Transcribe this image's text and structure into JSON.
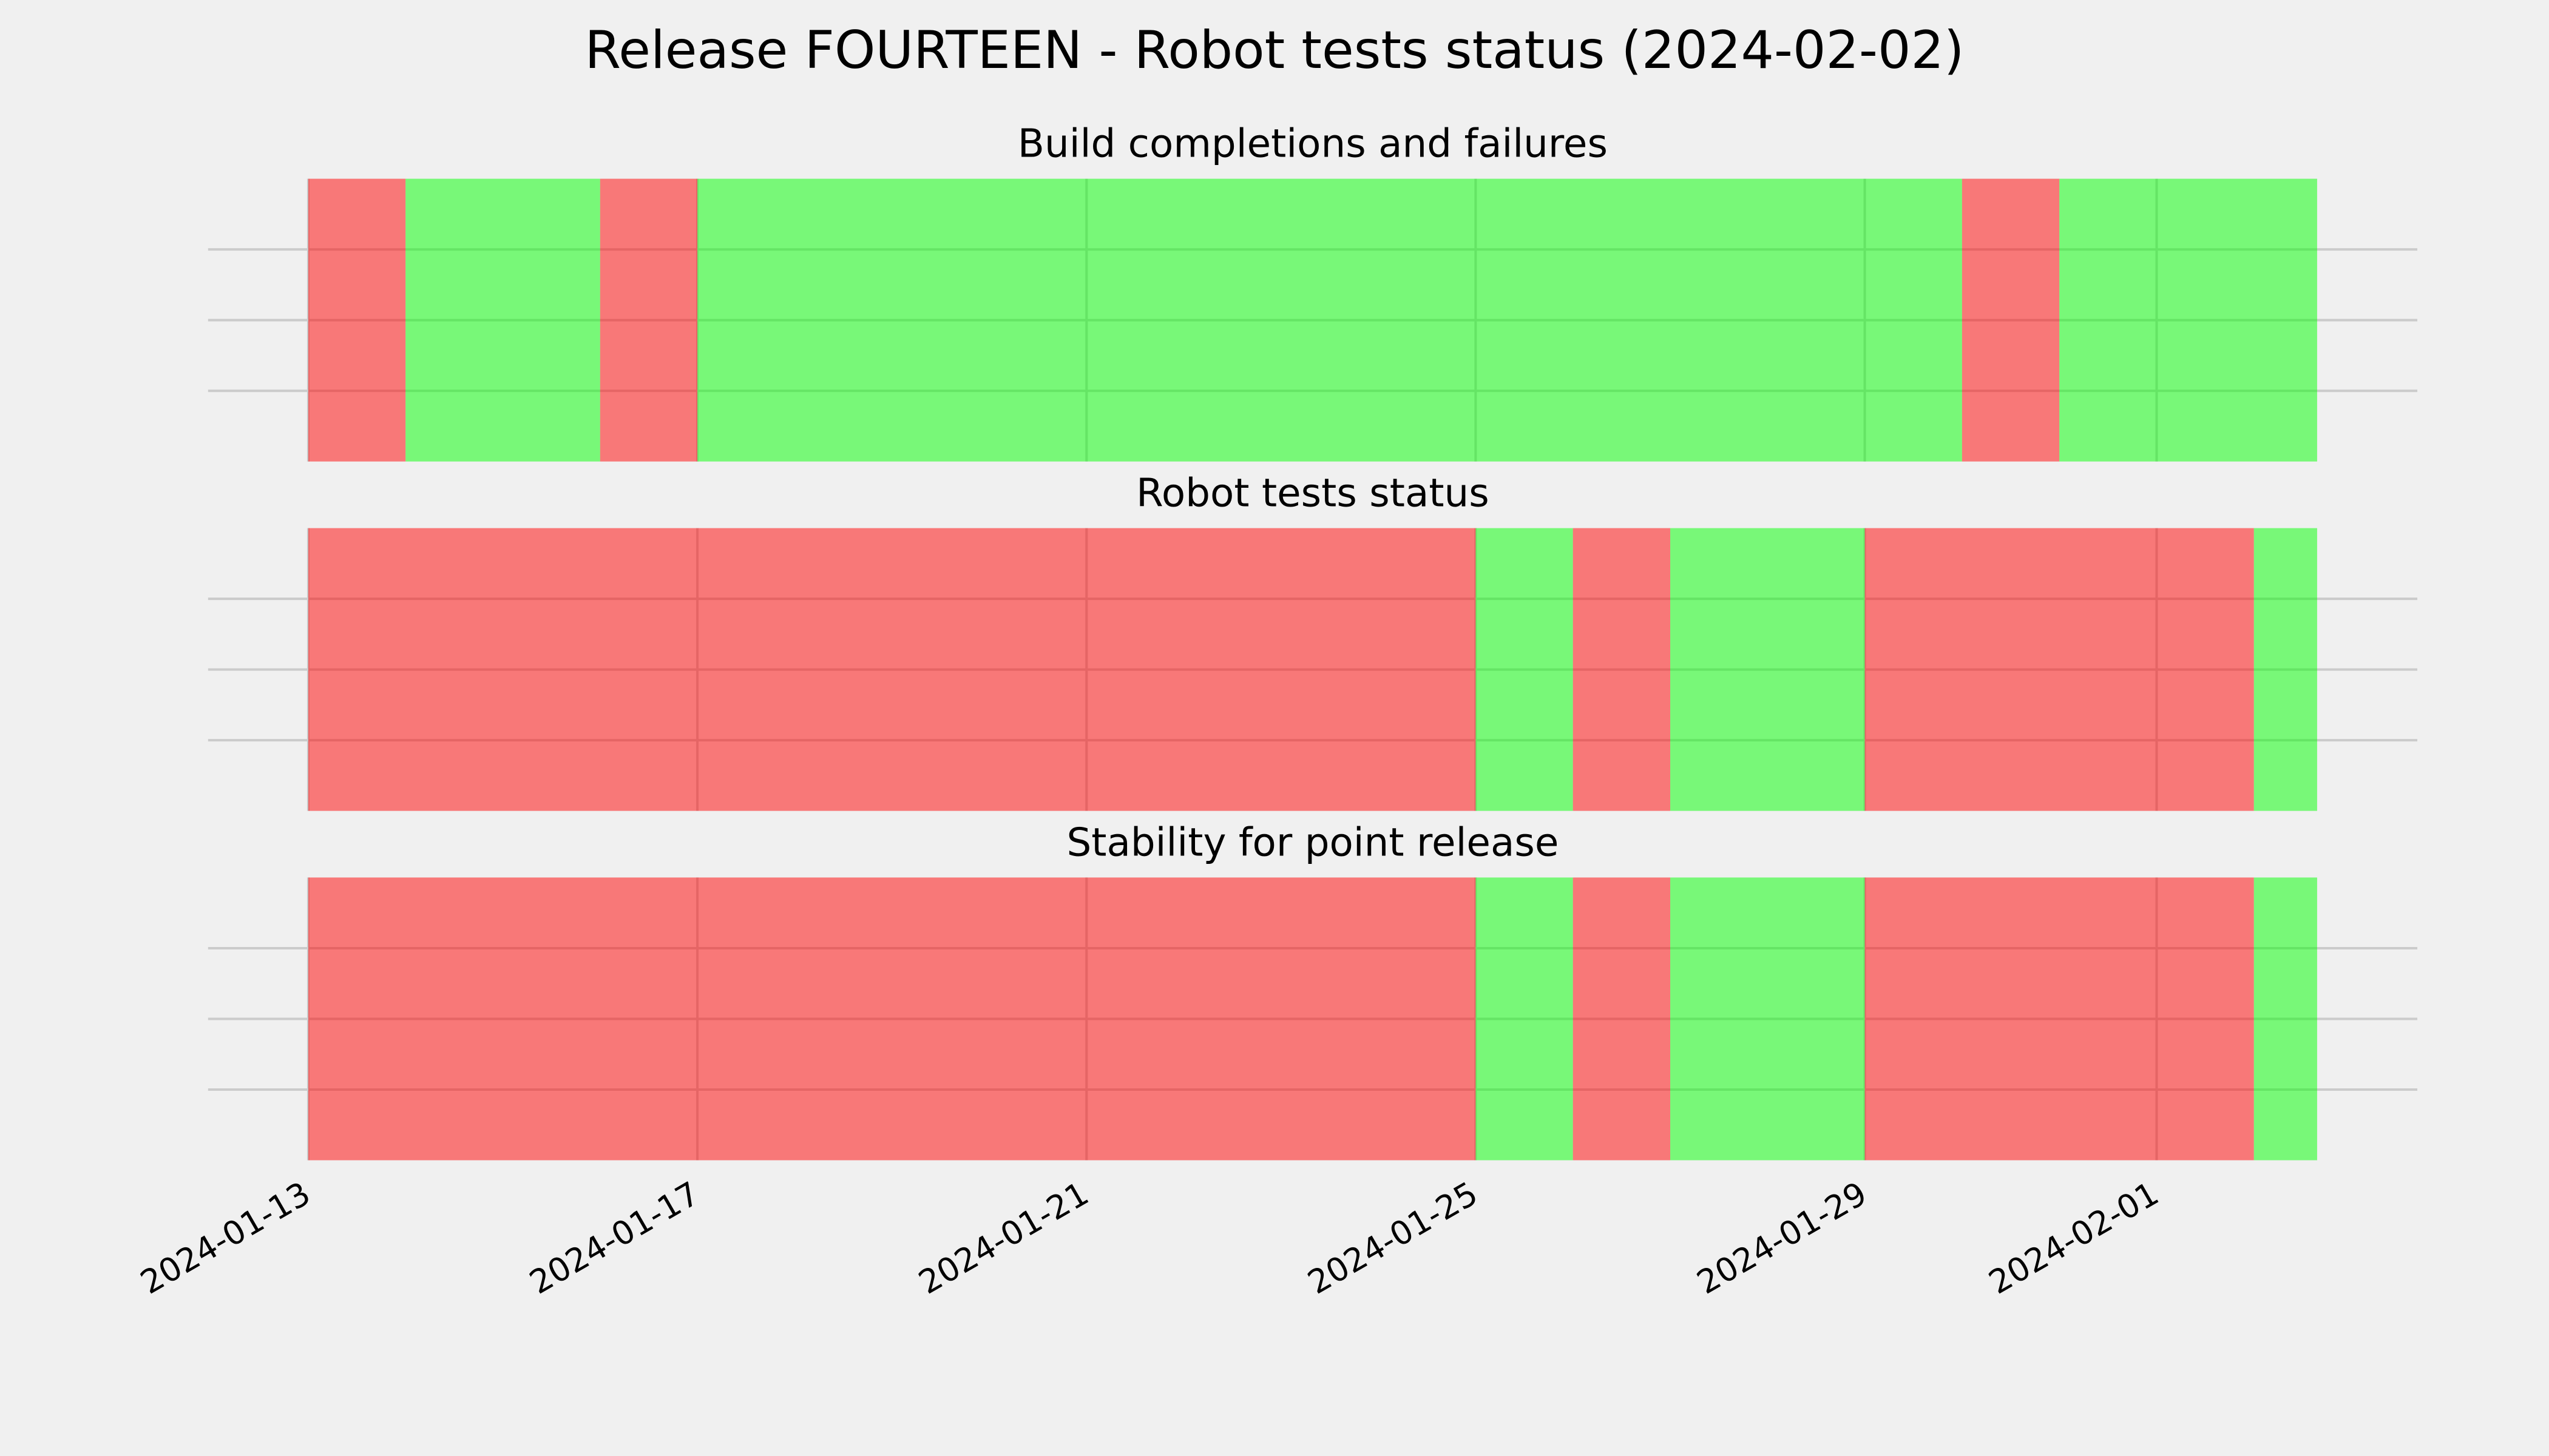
{
  "chart_data": {
    "type": "status-timeline",
    "title": "Release FOURTEEN - Robot tests status (2024-02-02)",
    "colors": [
      "#ff0000",
      "#00ff00"
    ],
    "alpha": 0.5,
    "xlim": [
      -1.03,
      21.68
    ],
    "xticks": [
      {
        "value": 0,
        "label": "2024-01-13"
      },
      {
        "value": 4,
        "label": "2024-01-17"
      },
      {
        "value": 8,
        "label": "2024-01-21"
      },
      {
        "value": 12,
        "label": "2024-01-25"
      },
      {
        "value": 16,
        "label": "2024-01-29"
      },
      {
        "value": 19,
        "label": "2024-02-01"
      }
    ],
    "ylim": [
      0,
      1
    ],
    "yticks": [
      0.25,
      0.5,
      0.75
    ],
    "grid": true,
    "x_end": 20.65,
    "panels": [
      {
        "title": "Build completions and failures",
        "x": [
          0,
          1,
          3,
          4,
          17,
          18
        ],
        "values": [
          0,
          1,
          0,
          1,
          0,
          1
        ]
      },
      {
        "title": "Robot tests status",
        "x": [
          0,
          12,
          13,
          14,
          16,
          20
        ],
        "values": [
          0,
          1,
          0,
          1,
          0,
          1
        ]
      },
      {
        "title": "Stability for point release",
        "x": [
          0,
          12,
          13,
          14,
          16,
          20
        ],
        "values": [
          0,
          1,
          0,
          1,
          0,
          1
        ]
      }
    ]
  }
}
